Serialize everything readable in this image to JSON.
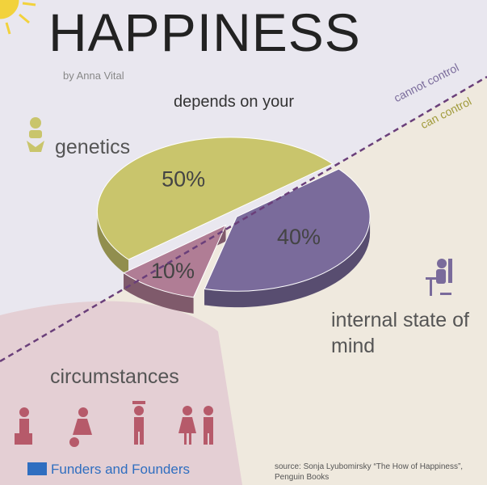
{
  "chart_data": {
    "type": "pie",
    "title": "HAPPINESS",
    "subtitle": "by Anna Vital",
    "lead": "depends on your",
    "categories": [
      "internal state of mind",
      "circumstances",
      "genetics"
    ],
    "values": [
      40,
      10,
      50
    ],
    "value_labels": [
      "40%",
      "10%",
      "50%"
    ],
    "colors": [
      "#7a6b9b",
      "#b07d95",
      "#c9c56c"
    ],
    "annotations": [
      "cannot control",
      "can control"
    ],
    "brand": "Funders and Founders",
    "source": "source: Sonja Lyubomirsky “The How of Happiness”, Penguin Books"
  }
}
